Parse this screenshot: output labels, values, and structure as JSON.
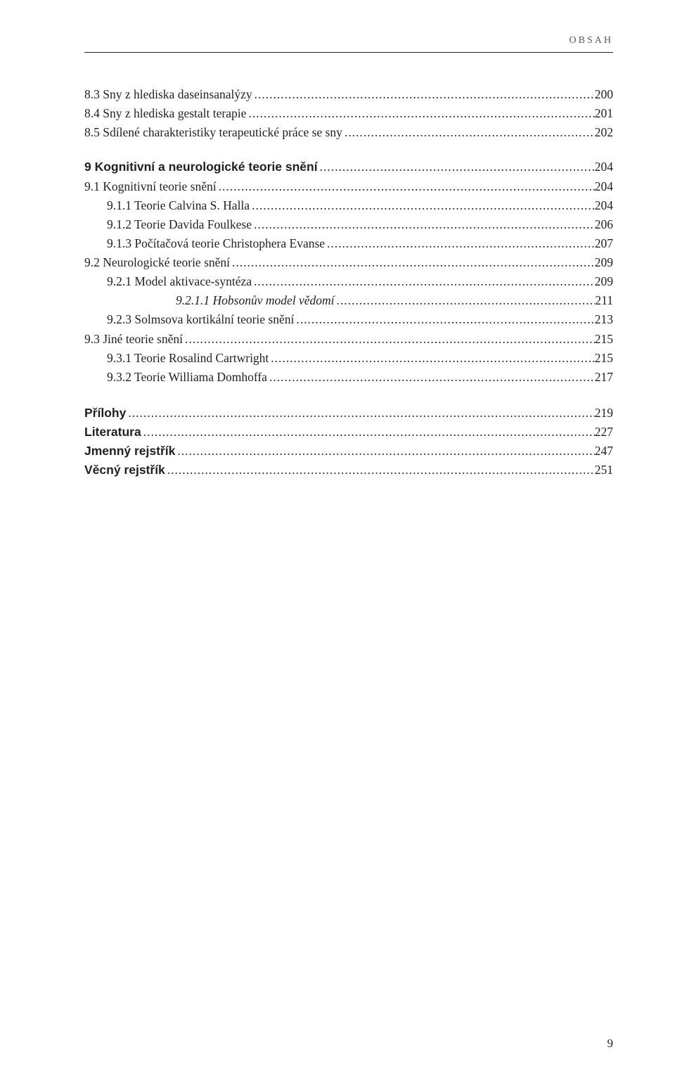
{
  "header": {
    "label": "OBSAH"
  },
  "toc": [
    {
      "indent": 0,
      "text": "8.3 Sny z hlediska daseinsanalýzy",
      "page": "200",
      "bold": false,
      "italic": false,
      "gap": ""
    },
    {
      "indent": 0,
      "text": "8.4 Sny z hlediska gestalt terapie",
      "page": "201",
      "bold": false,
      "italic": false,
      "gap": ""
    },
    {
      "indent": 0,
      "text": "8.5 Sdílené charakteristiky terapeutické práce se sny",
      "page": "202",
      "bold": false,
      "italic": false,
      "gap": ""
    },
    {
      "indent": 0,
      "text": "9 Kognitivní a neurologické teorie snění",
      "page": "204",
      "bold": true,
      "italic": false,
      "gap": "chapter"
    },
    {
      "indent": 0,
      "text": "9.1 Kognitivní teorie snění",
      "page": "204",
      "bold": false,
      "italic": false,
      "gap": ""
    },
    {
      "indent": 1,
      "text": "9.1.1 Teorie Calvina S. Halla",
      "page": "204",
      "bold": false,
      "italic": false,
      "gap": ""
    },
    {
      "indent": 1,
      "text": "9.1.2 Teorie Davida Foulkese",
      "page": "206",
      "bold": false,
      "italic": false,
      "gap": ""
    },
    {
      "indent": 1,
      "text": "9.1.3 Počítačová teorie Christophera Evanse",
      "page": "207",
      "bold": false,
      "italic": false,
      "gap": ""
    },
    {
      "indent": 0,
      "text": "9.2 Neurologické teorie snění",
      "page": "209",
      "bold": false,
      "italic": false,
      "gap": ""
    },
    {
      "indent": 1,
      "text": "9.2.1 Model aktivace-syntéza",
      "page": "209",
      "bold": false,
      "italic": false,
      "gap": ""
    },
    {
      "indent": 3,
      "text": "9.2.1.1 Hobsonův model vědomí",
      "page": "211",
      "bold": false,
      "italic": true,
      "gap": ""
    },
    {
      "indent": 1,
      "text": "9.2.3 Solmsova kortikální teorie snění",
      "page": "213",
      "bold": false,
      "italic": false,
      "gap": ""
    },
    {
      "indent": 0,
      "text": "9.3 Jiné teorie snění",
      "page": "215",
      "bold": false,
      "italic": false,
      "gap": ""
    },
    {
      "indent": 1,
      "text": "9.3.1 Teorie Rosalind Cartwright",
      "page": "215",
      "bold": false,
      "italic": false,
      "gap": ""
    },
    {
      "indent": 1,
      "text": "9.3.2 Teorie Williama Domhoffa",
      "page": "217",
      "bold": false,
      "italic": false,
      "gap": ""
    },
    {
      "indent": 0,
      "text": "Přílohy",
      "page": "219",
      "bold": true,
      "italic": false,
      "gap": "appendix"
    },
    {
      "indent": 0,
      "text": "Literatura",
      "page": "227",
      "bold": true,
      "italic": false,
      "gap": ""
    },
    {
      "indent": 0,
      "text": "Jmenný rejstřík",
      "page": "247",
      "bold": true,
      "italic": false,
      "gap": ""
    },
    {
      "indent": 0,
      "text": "Věcný rejstřík",
      "page": "251",
      "bold": true,
      "italic": false,
      "gap": ""
    }
  ],
  "page_number": "9"
}
